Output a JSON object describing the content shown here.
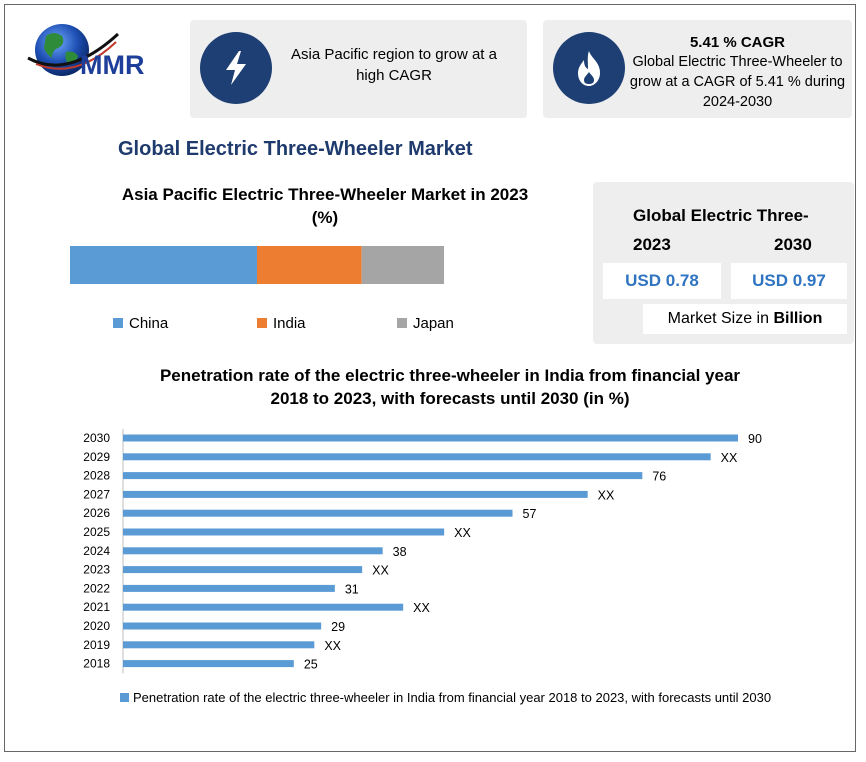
{
  "brand": {
    "name": "MMR"
  },
  "header": {
    "card1_text": "Asia Pacific region to grow at a high CAGR",
    "card2_title": "5.41 % CAGR",
    "card2_text": "Global Electric Three-Wheeler to grow at a CAGR of 5.41 % during 2024-2030"
  },
  "main_title": "Global Electric Three-Wheeler Market",
  "market_box": {
    "title": "Global Electric Three-",
    "year_left": "2023",
    "year_right": "2030",
    "value_left": "USD 0.78",
    "value_right": "USD 0.97",
    "footer_prefix": "Market Size in ",
    "footer_bold": "Billion"
  },
  "colors": {
    "navy": "#1d3f73",
    "china": "#5b9bd5",
    "india": "#ed7d31",
    "japan": "#a5a5a5",
    "bar": "#5b9bd5"
  },
  "chart_data": [
    {
      "type": "bar",
      "orientation": "stacked-horizontal",
      "title": "Asia Pacific Electric Three-Wheeler Market in 2023",
      "subtitle": "(%)",
      "series": [
        {
          "name": "China",
          "values": [
            50
          ]
        },
        {
          "name": "India",
          "values": [
            28
          ]
        },
        {
          "name": "Japan",
          "values": [
            22
          ]
        }
      ],
      "legend": "bottom"
    },
    {
      "type": "bar",
      "orientation": "horizontal",
      "title": "Penetration rate of the electric three-wheeler in India from financial year 2018 to 2023, with forecasts until 2030 (in %)",
      "categories": [
        "2030",
        "2029",
        "2028",
        "2027",
        "2026",
        "2025",
        "2024",
        "2023",
        "2022",
        "2021",
        "2020",
        "2019",
        "2018"
      ],
      "values": [
        90,
        86,
        76,
        68,
        57,
        47,
        38,
        35,
        31,
        41,
        29,
        28,
        25
      ],
      "labels": [
        "90",
        "XX",
        "76",
        "XX",
        "57",
        "XX",
        "38",
        "XX",
        "31",
        "XX",
        "29",
        "XX",
        "25"
      ],
      "xlim": [
        0,
        90
      ],
      "legend_label": "Penetration rate of the electric three-wheeler in India from financial year 2018 to 2023, with forecasts until 2030",
      "legend": "bottom"
    }
  ]
}
